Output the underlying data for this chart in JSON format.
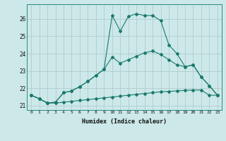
{
  "xlabel": "Humidex (Indice chaleur)",
  "bg_color": "#cce8e8",
  "line_color": "#1a7a6e",
  "grid_color": "#b0cccc",
  "xlim": [
    -0.5,
    23.5
  ],
  "ylim": [
    20.75,
    26.85
  ],
  "yticks": [
    21,
    22,
    23,
    24,
    25,
    26
  ],
  "xticks": [
    0,
    1,
    2,
    3,
    4,
    5,
    6,
    7,
    8,
    9,
    10,
    11,
    12,
    13,
    14,
    15,
    16,
    17,
    18,
    19,
    20,
    21,
    22,
    23
  ],
  "line1_x": [
    0,
    1,
    2,
    3,
    4,
    5,
    6,
    7,
    8,
    9,
    10,
    11,
    12,
    13,
    14,
    15,
    16,
    17,
    18,
    19,
    20,
    21,
    22,
    23
  ],
  "line1_y": [
    21.6,
    21.4,
    21.15,
    21.15,
    21.2,
    21.25,
    21.3,
    21.35,
    21.4,
    21.45,
    21.5,
    21.55,
    21.6,
    21.65,
    21.7,
    21.75,
    21.8,
    21.82,
    21.85,
    21.88,
    21.9,
    21.9,
    21.6,
    21.6
  ],
  "line2_x": [
    0,
    1,
    2,
    3,
    4,
    5,
    6,
    7,
    8,
    9,
    10,
    11,
    12,
    13,
    14,
    15,
    16,
    17,
    18,
    19,
    20,
    21,
    22,
    23
  ],
  "line2_y": [
    21.6,
    21.4,
    21.15,
    21.2,
    21.75,
    21.85,
    22.1,
    22.4,
    22.75,
    23.1,
    23.8,
    23.45,
    23.65,
    23.85,
    24.05,
    24.15,
    23.95,
    23.65,
    23.35,
    23.25,
    23.35,
    22.65,
    22.15,
    21.6
  ],
  "line3_x": [
    0,
    1,
    2,
    3,
    4,
    5,
    6,
    7,
    8,
    9,
    10,
    11,
    12,
    13,
    14,
    15,
    16,
    17,
    18,
    19,
    20,
    21,
    22,
    23
  ],
  "line3_y": [
    21.6,
    21.4,
    21.15,
    21.2,
    21.75,
    21.85,
    22.1,
    22.4,
    22.75,
    23.1,
    26.2,
    25.3,
    26.15,
    26.3,
    26.2,
    26.2,
    25.9,
    24.5,
    24.0,
    23.25,
    23.35,
    22.65,
    22.15,
    21.6
  ]
}
